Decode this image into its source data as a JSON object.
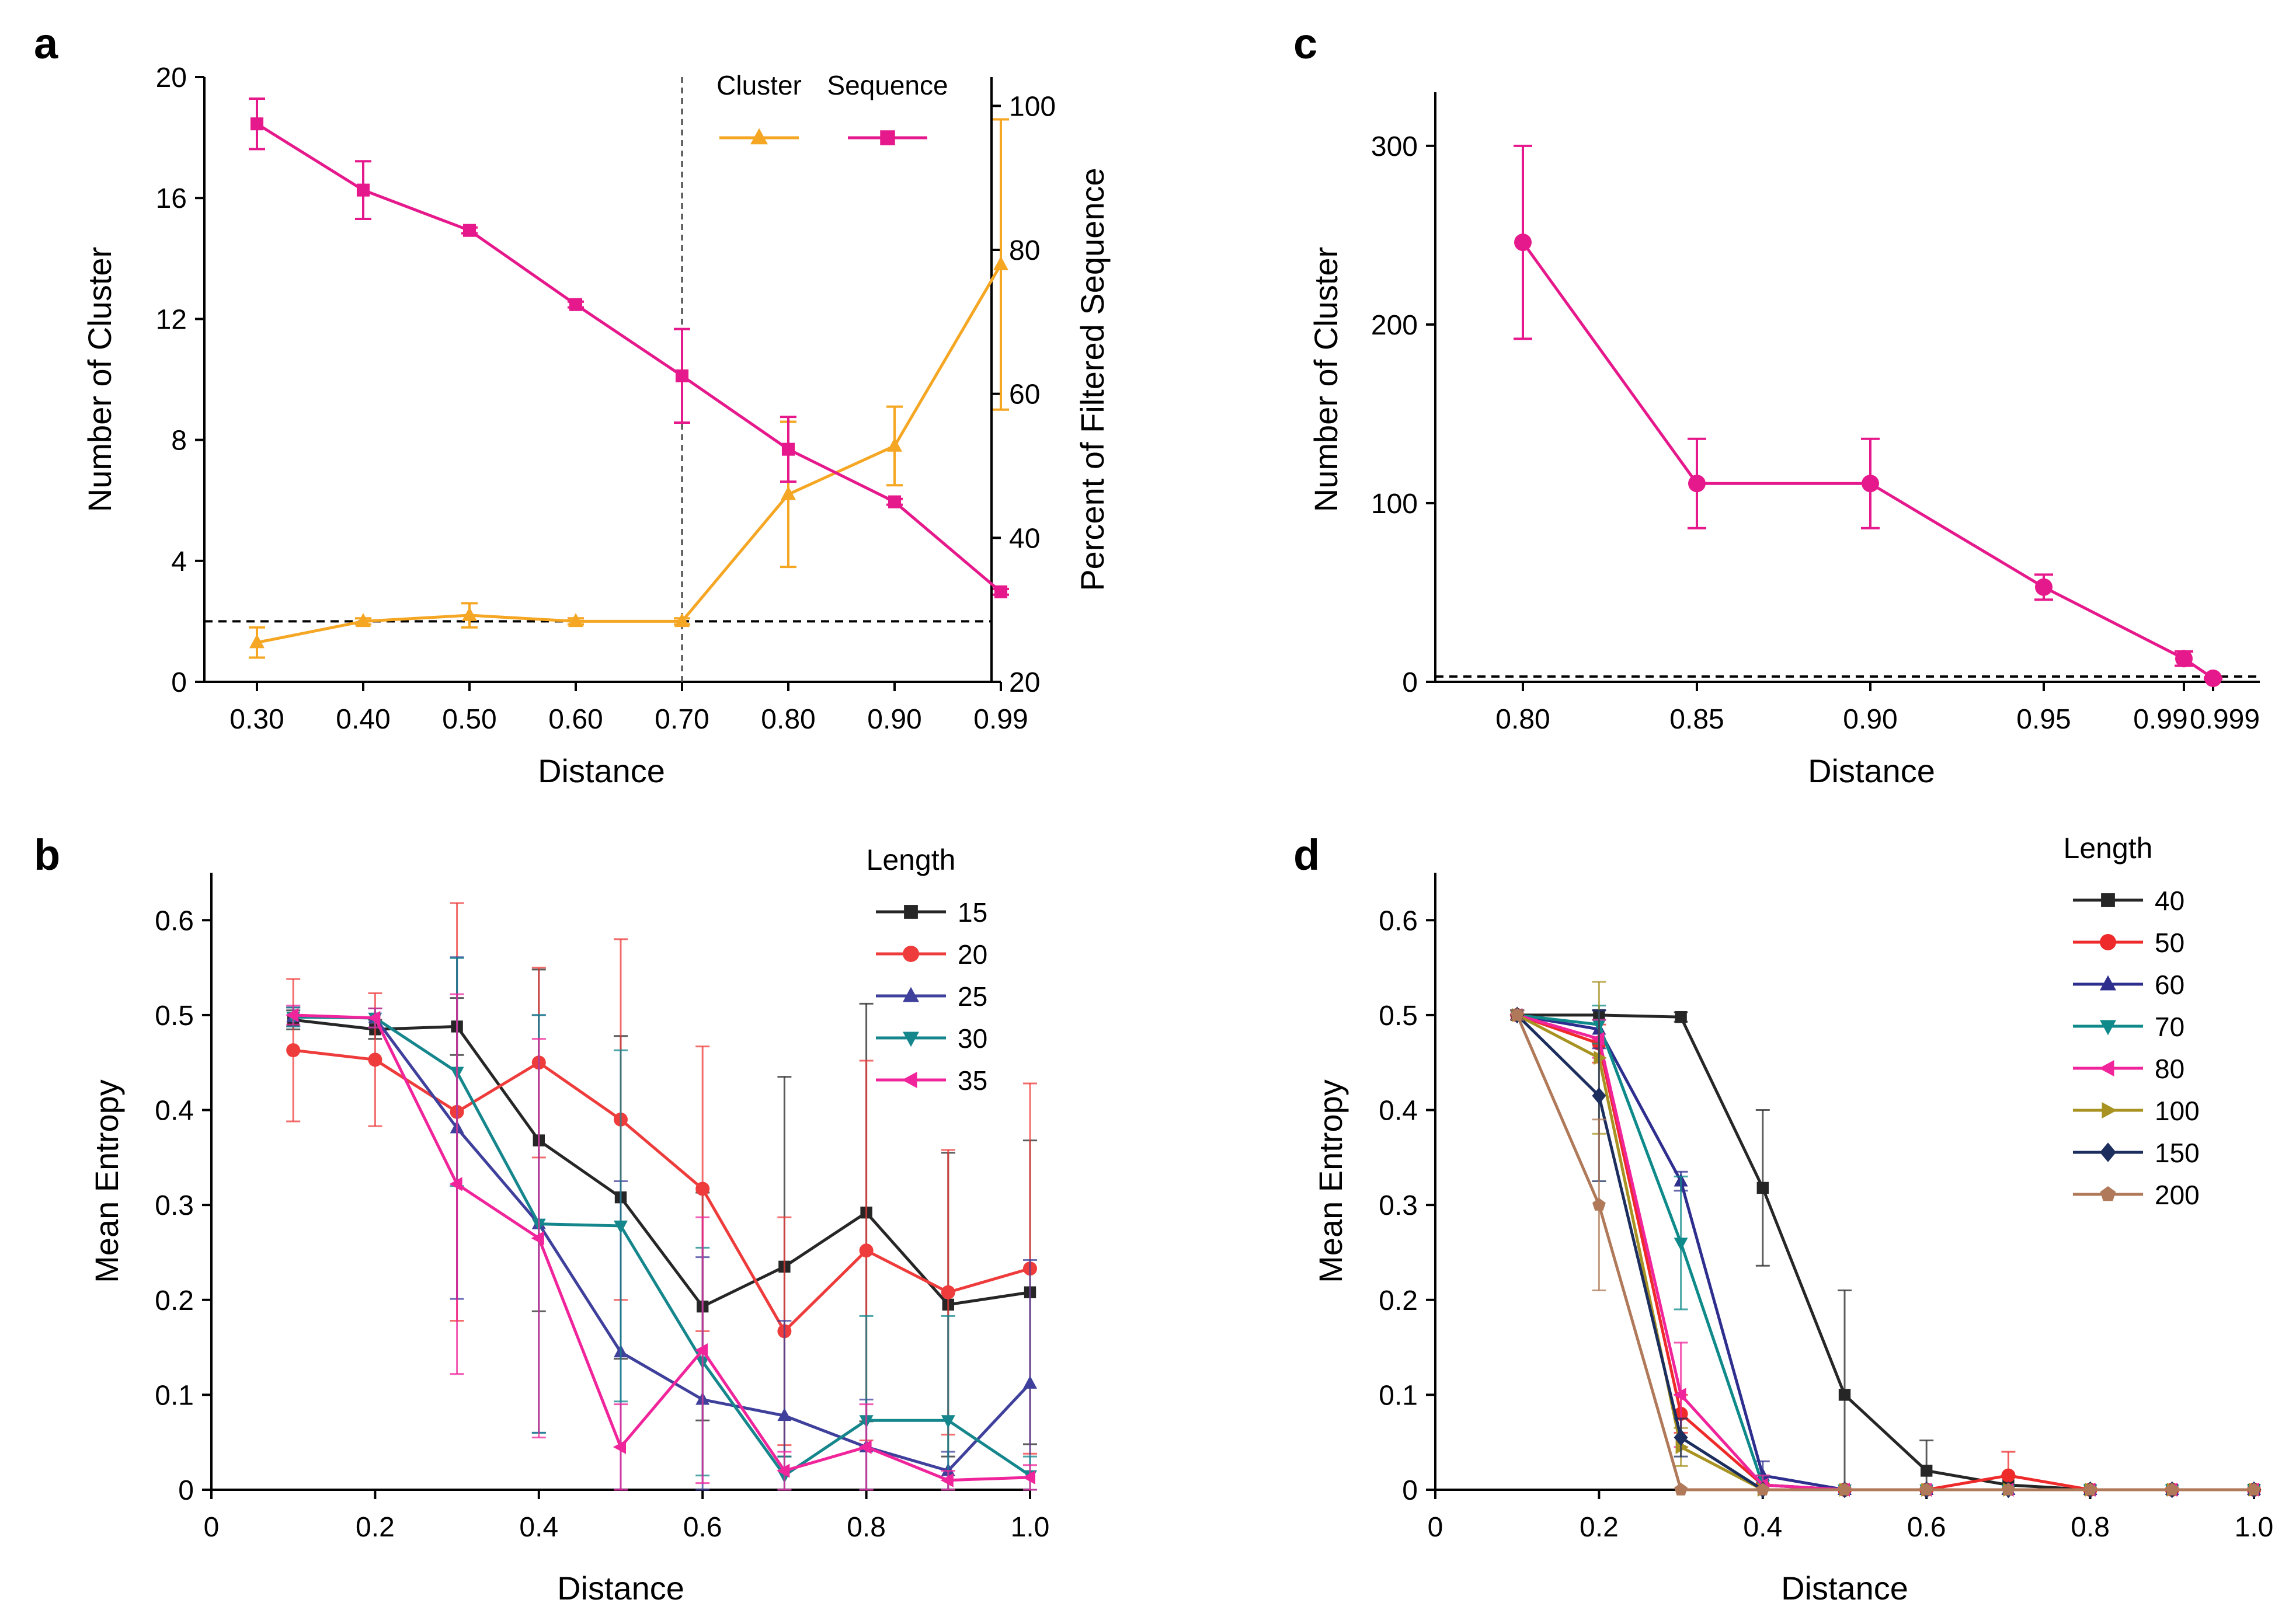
{
  "chart_data": [
    {
      "panel": "a",
      "type": "line",
      "xlabel": "Distance",
      "ylabel": "Number of Cluster",
      "ylabel_right": "Percent of Filtered Sequence",
      "categories": [
        "0.30",
        "0.40",
        "0.50",
        "0.60",
        "0.70",
        "0.80",
        "0.90",
        "0.99"
      ],
      "ylim": [
        0,
        20
      ],
      "yticks": [
        "0",
        "4",
        "8",
        "12",
        "16",
        "20"
      ],
      "ylim_right": [
        20,
        104
      ],
      "yticks_right": [
        "20",
        "40",
        "60",
        "80",
        "100"
      ],
      "hline": 2,
      "vline_category": "0.70",
      "legend": {
        "position": "top-right",
        "layout": "horizontal"
      },
      "series": [
        {
          "name": "Cluster",
          "axis": "left",
          "marker": "triangle-up",
          "color": "#F5A623",
          "values": [
            1.3,
            2.0,
            2.2,
            2.0,
            2.0,
            6.2,
            7.8,
            13.8
          ],
          "errors": [
            0.5,
            0.1,
            0.4,
            0.1,
            0.1,
            2.4,
            1.3,
            4.8
          ]
        },
        {
          "name": "Sequence",
          "axis": "right",
          "marker": "square",
          "color": "#E6198C",
          "values": [
            97.5,
            88.3,
            82.7,
            72.4,
            62.5,
            52.3,
            45.0,
            32.5
          ],
          "errors": [
            3.5,
            4.0,
            0.4,
            0.4,
            6.5,
            4.5,
            0.4,
            0.4
          ]
        }
      ]
    },
    {
      "panel": "b",
      "type": "line",
      "xlabel": "Distance",
      "ylabel": "Mean Entropy",
      "xlim": [
        0,
        1.0
      ],
      "xticks": [
        "0",
        "0.2",
        "0.4",
        "0.6",
        "0.8",
        "1.0"
      ],
      "ylim": [
        0,
        0.65
      ],
      "yticks": [
        "0",
        "0.1",
        "0.2",
        "0.3",
        "0.4",
        "0.5",
        "0.6"
      ],
      "x": [
        0.1,
        0.2,
        0.3,
        0.4,
        0.5,
        0.6,
        0.7,
        0.8,
        0.9,
        1.0
      ],
      "legend": {
        "title": "Length",
        "position": "top-right"
      },
      "series": [
        {
          "name": "15",
          "marker": "square",
          "color": "#262626",
          "values": [
            0.495,
            0.485,
            0.488,
            0.368,
            0.308,
            0.193,
            0.235,
            0.292,
            0.195,
            0.208
          ],
          "errors": [
            0.01,
            0.01,
            0.03,
            0.18,
            0.17,
            0.12,
            0.2,
            0.22,
            0.16,
            0.16
          ]
        },
        {
          "name": "20",
          "marker": "circle",
          "color": "#EE3B3B",
          "values": [
            0.463,
            0.453,
            0.398,
            0.45,
            0.39,
            0.317,
            0.167,
            0.252,
            0.208,
            0.233
          ],
          "errors": [
            0.075,
            0.07,
            0.22,
            0.1,
            0.19,
            0.15,
            0.12,
            0.2,
            0.15,
            0.195
          ]
        },
        {
          "name": "25",
          "marker": "triangle-up",
          "color": "#3F3F9C",
          "values": [
            0.498,
            0.497,
            0.381,
            0.28,
            0.145,
            0.095,
            0.078,
            0.045,
            0.02,
            0.112
          ],
          "errors": [
            0.01,
            0.01,
            0.18,
            0.22,
            0.18,
            0.15,
            0.1,
            0.05,
            0.02,
            0.13
          ]
        },
        {
          "name": "30",
          "marker": "triangle-down",
          "color": "#14868C",
          "values": [
            0.498,
            0.497,
            0.44,
            0.28,
            0.278,
            0.135,
            0.015,
            0.073,
            0.073,
            0.015
          ],
          "errors": [
            0.01,
            0.01,
            0.12,
            0.22,
            0.185,
            0.12,
            0.02,
            0.11,
            0.11,
            0.02
          ]
        },
        {
          "name": "35",
          "marker": "triangle-left",
          "color": "#F0249B",
          "values": [
            0.5,
            0.497,
            0.322,
            0.265,
            0.045,
            0.147,
            0.02,
            0.045,
            0.01,
            0.013
          ],
          "errors": [
            0.01,
            0.01,
            0.2,
            0.21,
            0.045,
            0.14,
            0.02,
            0.045,
            0.01,
            0.013
          ]
        }
      ]
    },
    {
      "panel": "c",
      "type": "line",
      "xlabel": "Distance",
      "ylabel": "Number of Cluster",
      "x": [
        0.8,
        0.85,
        0.9,
        0.95,
        0.99,
        0.999
      ],
      "xticks": [
        "0.80",
        "0.85",
        "0.90",
        "0.95",
        "0.99",
        "0.999"
      ],
      "ylim": [
        0,
        330
      ],
      "yticks": [
        "0",
        "100",
        "200",
        "300"
      ],
      "hline": 3,
      "series": [
        {
          "name": "Cluster",
          "marker": "circle",
          "color": "#E6198C",
          "values": [
            246,
            111,
            111,
            53,
            13,
            2
          ],
          "errors": [
            54,
            25,
            25,
            7,
            4,
            0.5
          ]
        }
      ]
    },
    {
      "panel": "d",
      "type": "line",
      "xlabel": "Distance",
      "ylabel": "Mean Entropy",
      "xlim": [
        0,
        1.0
      ],
      "xticks": [
        "0",
        "0.2",
        "0.4",
        "0.6",
        "0.8",
        "1.0"
      ],
      "ylim": [
        0,
        0.65
      ],
      "yticks": [
        "0",
        "0.1",
        "0.2",
        "0.3",
        "0.4",
        "0.5",
        "0.6"
      ],
      "x": [
        0.1,
        0.2,
        0.3,
        0.4,
        0.5,
        0.6,
        0.7,
        0.8,
        0.9,
        1.0
      ],
      "legend": {
        "title": "Length",
        "position": "top-right"
      },
      "series": [
        {
          "name": "40",
          "marker": "square",
          "color": "#262626",
          "values": [
            0.5,
            0.5,
            0.498,
            0.318,
            0.1,
            0.02,
            0.005,
            0,
            0,
            0
          ],
          "errors": [
            0.005,
            0.005,
            0.005,
            0.082,
            0.11,
            0.032,
            0.01,
            0,
            0,
            0
          ]
        },
        {
          "name": "50",
          "marker": "circle",
          "color": "#EE2A2A",
          "values": [
            0.5,
            0.47,
            0.08,
            0.005,
            0,
            0,
            0.015,
            0,
            0,
            0
          ],
          "errors": [
            0.005,
            0.02,
            0.02,
            0.01,
            0,
            0,
            0.025,
            0,
            0,
            0
          ]
        },
        {
          "name": "60",
          "marker": "triangle-up",
          "color": "#2E2E8F",
          "values": [
            0.5,
            0.485,
            0.325,
            0.015,
            0,
            0,
            0,
            0,
            0,
            0
          ],
          "errors": [
            0.005,
            0.02,
            0.01,
            0.015,
            0,
            0,
            0,
            0,
            0,
            0
          ]
        },
        {
          "name": "70",
          "marker": "triangle-down",
          "color": "#0F8A8A",
          "values": [
            0.5,
            0.49,
            0.26,
            0.005,
            0,
            0,
            0,
            0,
            0,
            0
          ],
          "errors": [
            0.005,
            0.02,
            0.07,
            0.01,
            0,
            0,
            0,
            0,
            0,
            0
          ]
        },
        {
          "name": "80",
          "marker": "triangle-left",
          "color": "#F0249B",
          "values": [
            0.5,
            0.475,
            0.1,
            0.005,
            0,
            0,
            0,
            0,
            0,
            0
          ],
          "errors": [
            0.005,
            0.02,
            0.055,
            0.01,
            0,
            0,
            0,
            0,
            0,
            0
          ]
        },
        {
          "name": "100",
          "marker": "triangle-right",
          "color": "#A89322",
          "values": [
            0.5,
            0.455,
            0.045,
            0,
            0,
            0,
            0,
            0,
            0,
            0
          ],
          "errors": [
            0.005,
            0.08,
            0.02,
            0,
            0,
            0,
            0,
            0,
            0,
            0
          ]
        },
        {
          "name": "150",
          "marker": "diamond",
          "color": "#1C2E5E",
          "values": [
            0.5,
            0.415,
            0.055,
            0,
            0,
            0,
            0,
            0,
            0,
            0
          ],
          "errors": [
            0.005,
            0.09,
            0.02,
            0,
            0,
            0,
            0,
            0,
            0,
            0
          ]
        },
        {
          "name": "200",
          "marker": "pentagon",
          "color": "#B07A5A",
          "values": [
            0.5,
            0.3,
            0,
            0,
            0,
            0,
            0,
            0,
            0,
            0
          ],
          "errors": [
            0.005,
            0.09,
            0,
            0,
            0,
            0,
            0,
            0,
            0,
            0
          ]
        }
      ]
    }
  ]
}
